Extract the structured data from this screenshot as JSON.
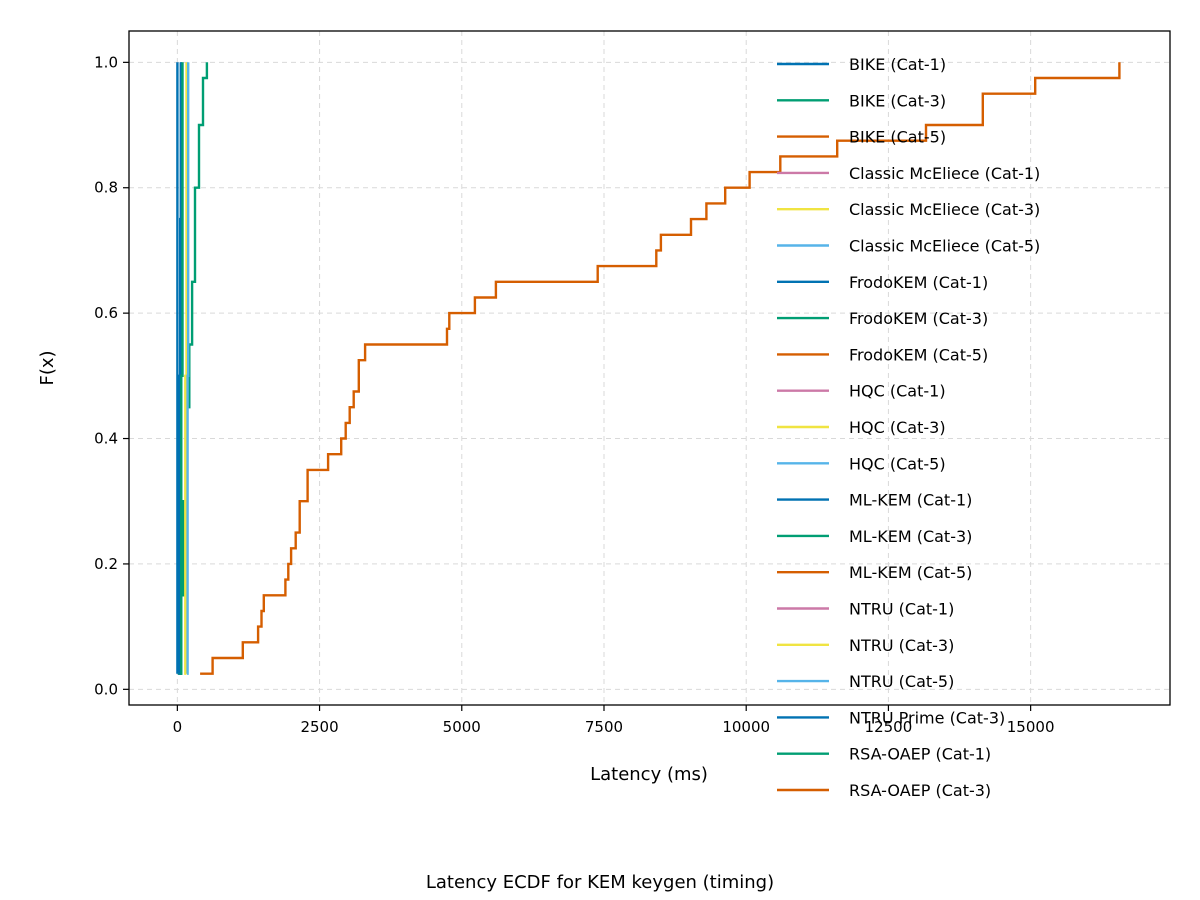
{
  "caption": "Latency ECDF for KEM keygen (timing)",
  "chart_data": {
    "type": "line",
    "step": true,
    "title": "",
    "xlabel": "Latency (ms)",
    "ylabel": "F(x)",
    "xlim": [
      -850,
      17450
    ],
    "ylim": [
      -0.025,
      1.05
    ],
    "xticks": [
      0,
      2500,
      5000,
      7500,
      10000,
      12500,
      15000
    ],
    "yticks": [
      0.0,
      0.2,
      0.4,
      0.6,
      0.8,
      1.0
    ],
    "xtick_labels": [
      "0",
      "2500",
      "5000",
      "7500",
      "10000",
      "12500",
      "15000"
    ],
    "ytick_labels": [
      "0.0",
      "0.2",
      "0.4",
      "0.6",
      "0.8",
      "1.0"
    ],
    "grid": true,
    "legend_position": "upper-right",
    "series": [
      {
        "name": "BIKE (Cat-1)",
        "color": "#0072B2",
        "x": [
          10,
          20,
          35,
          50,
          70
        ],
        "y": [
          0.025,
          0.25,
          0.5,
          0.75,
          1.0
        ]
      },
      {
        "name": "BIKE (Cat-3)",
        "color": "#009E73",
        "x": [
          20,
          60,
          110,
          160,
          210,
          260,
          310,
          380,
          450,
          520
        ],
        "y": [
          0.025,
          0.15,
          0.3,
          0.45,
          0.55,
          0.65,
          0.8,
          0.9,
          0.975,
          1.0
        ]
      },
      {
        "name": "BIKE (Cat-5)",
        "color": "#D55E00",
        "x": [
          400,
          620,
          1150,
          1420,
          1480,
          1520,
          1900,
          1950,
          2000,
          2080,
          2150,
          2290,
          2650,
          2880,
          2960,
          3030,
          3100,
          3190,
          3300,
          4740,
          4780,
          5230,
          5600,
          7390,
          8420,
          8500,
          9030,
          9300,
          9630,
          10060,
          10600,
          11600,
          13160,
          13290,
          14160,
          15080,
          16560
        ],
        "y": [
          0.025,
          0.05,
          0.075,
          0.1,
          0.125,
          0.15,
          0.175,
          0.2,
          0.225,
          0.25,
          0.3,
          0.35,
          0.375,
          0.4,
          0.425,
          0.45,
          0.475,
          0.525,
          0.55,
          0.575,
          0.6,
          0.625,
          0.65,
          0.675,
          0.7,
          0.725,
          0.75,
          0.775,
          0.8,
          0.825,
          0.85,
          0.875,
          0.9,
          0.9,
          0.95,
          0.975,
          1.0
        ]
      },
      {
        "name": "Classic McEliece (Cat-1)",
        "color": "#CC79A7",
        "x": [],
        "y": []
      },
      {
        "name": "Classic McEliece (Cat-3)",
        "color": "#F0E442",
        "x": [
          120,
          140,
          160
        ],
        "y": [
          0.025,
          0.5,
          1.0
        ]
      },
      {
        "name": "Classic McEliece (Cat-5)",
        "color": "#56B4E9",
        "x": [
          170,
          180,
          190
        ],
        "y": [
          0.025,
          0.5,
          1.0
        ]
      },
      {
        "name": "FrodoKEM (Cat-1)",
        "color": "#0072B2",
        "x": [
          40,
          50,
          60
        ],
        "y": [
          0.025,
          0.5,
          1.0
        ]
      },
      {
        "name": "FrodoKEM (Cat-3)",
        "color": "#009E73",
        "x": [
          50,
          70,
          90
        ],
        "y": [
          0.025,
          0.5,
          1.0
        ]
      },
      {
        "name": "FrodoKEM (Cat-5)",
        "color": "#D55E00",
        "x": [],
        "y": []
      },
      {
        "name": "HQC (Cat-1)",
        "color": "#CC79A7",
        "x": [],
        "y": []
      },
      {
        "name": "HQC (Cat-3)",
        "color": "#F0E442",
        "x": [],
        "y": []
      },
      {
        "name": "HQC (Cat-5)",
        "color": "#56B4E9",
        "x": [],
        "y": []
      },
      {
        "name": "ML-KEM (Cat-1)",
        "color": "#0072B2",
        "x": [
          0,
          1
        ],
        "y": [
          0.025,
          1.0
        ]
      },
      {
        "name": "ML-KEM (Cat-3)",
        "color": "#009E73",
        "x": [],
        "y": []
      },
      {
        "name": "ML-KEM (Cat-5)",
        "color": "#D55E00",
        "x": [],
        "y": []
      },
      {
        "name": "NTRU (Cat-1)",
        "color": "#CC79A7",
        "x": [],
        "y": []
      },
      {
        "name": "NTRU (Cat-3)",
        "color": "#F0E442",
        "x": [],
        "y": []
      },
      {
        "name": "NTRU (Cat-5)",
        "color": "#56B4E9",
        "x": [],
        "y": []
      },
      {
        "name": "NTRU Prime (Cat-3)",
        "color": "#0072B2",
        "x": [],
        "y": []
      },
      {
        "name": "RSA-OAEP (Cat-1)",
        "color": "#009E73",
        "x": [],
        "y": []
      },
      {
        "name": "RSA-OAEP (Cat-3)",
        "color": "#D55E00",
        "x": [],
        "y": []
      }
    ]
  }
}
